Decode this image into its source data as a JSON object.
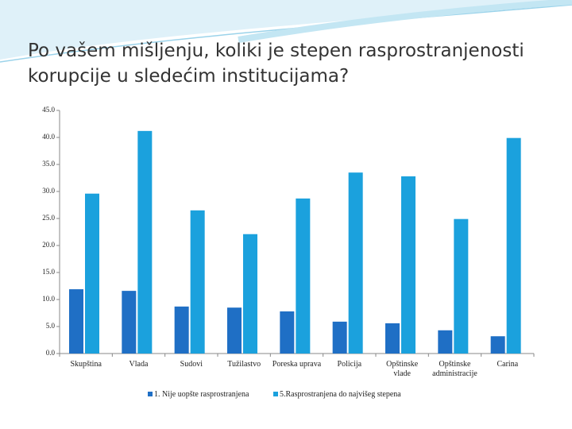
{
  "chart_data": {
    "type": "bar",
    "title": "Po vašem mišljenju, koliki je stepen rasprostranjenosti korupcije u sledećim institucijama?",
    "categories": [
      "Skupština",
      "Vlada",
      "Sudovi",
      "Tužilastvo",
      "Poreska uprava",
      "Policija",
      "Opštinske vlade",
      "Opštinske administracije",
      "Carina"
    ],
    "series": [
      {
        "name": "1. Nije uopšte rasprostranjena",
        "color": "#1f6fc5",
        "values": [
          11.9,
          11.6,
          8.7,
          8.5,
          7.8,
          5.9,
          5.6,
          4.3,
          3.2
        ]
      },
      {
        "name": "5.Rasprostranjena do najvišeg stepena",
        "color": "#1ba1dd",
        "values": [
          29.6,
          41.2,
          26.5,
          22.1,
          28.7,
          33.5,
          32.8,
          24.9,
          39.9
        ]
      }
    ],
    "ylim": [
      0,
      45
    ],
    "yticks": [
      {
        "value": 0,
        "label": "0.0"
      },
      {
        "value": 5,
        "label": "5.0"
      },
      {
        "value": 10,
        "label": "10.0"
      },
      {
        "value": 15,
        "label": "15.0"
      },
      {
        "value": 20,
        "label": "20.0"
      },
      {
        "value": 25,
        "label": "25.0"
      },
      {
        "value": 30,
        "label": "30.0"
      },
      {
        "value": 35,
        "label": "35.0"
      },
      {
        "value": 40,
        "label": "40.0"
      },
      {
        "value": 45,
        "label": "45.0"
      }
    ],
    "grid": false,
    "legend": "bottom"
  }
}
